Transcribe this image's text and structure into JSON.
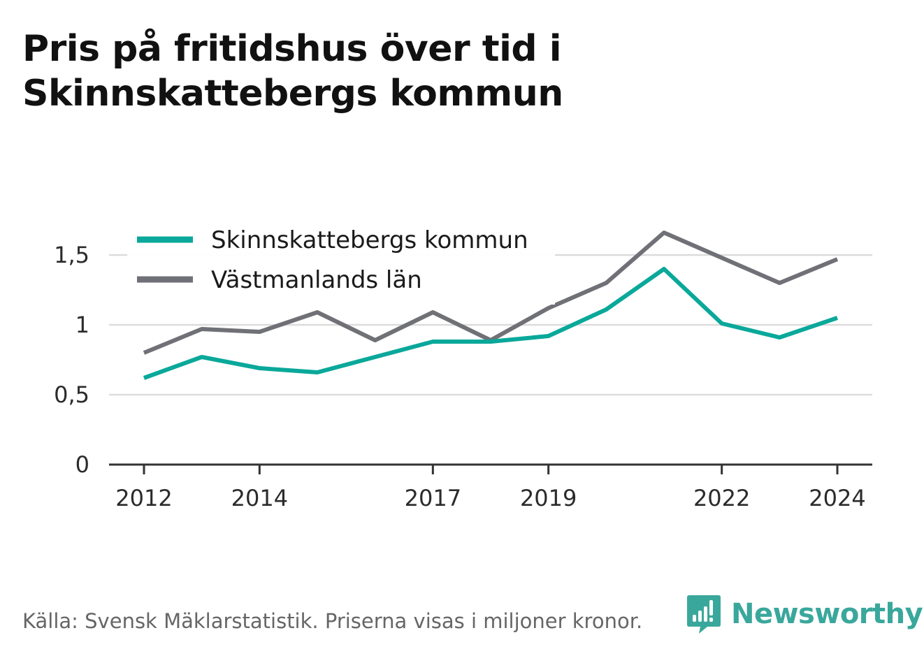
{
  "title": "Pris på fritidshus över tid i Skinnskattebergs kommun",
  "source": "Källa: Svensk Mäklarstatistik. Priserna visas i miljoner kronor.",
  "brand": {
    "name": "Newsworthy",
    "icon": "newsworthy-logo-icon",
    "color": "#3aa79c"
  },
  "chart_data": {
    "type": "line",
    "x": [
      2012,
      2013,
      2014,
      2015,
      2016,
      2017,
      2018,
      2019,
      2020,
      2021,
      2022,
      2023,
      2024
    ],
    "x_tick_labels": [
      "2012",
      "2014",
      "2017",
      "2019",
      "2022",
      "2024"
    ],
    "x_tick_values": [
      2012,
      2014,
      2017,
      2019,
      2022,
      2024
    ],
    "y_tick_labels": [
      "0",
      "0,5",
      "1",
      "1,5"
    ],
    "y_tick_values": [
      0,
      0.5,
      1,
      1.5
    ],
    "ylim": [
      0,
      1.75
    ],
    "grid": true,
    "legend_position": "top-left",
    "series": [
      {
        "name": "Skinnskattebergs kommun",
        "color": "#0aa89a",
        "values": [
          0.62,
          0.77,
          0.69,
          0.66,
          0.77,
          0.88,
          0.88,
          0.92,
          1.11,
          1.4,
          1.01,
          0.91,
          1.05
        ]
      },
      {
        "name": "Västmanlands län",
        "color": "#707077",
        "values": [
          0.8,
          0.97,
          0.95,
          1.09,
          0.89,
          1.09,
          0.89,
          1.12,
          1.3,
          1.66,
          1.48,
          1.3,
          1.47
        ]
      }
    ]
  }
}
